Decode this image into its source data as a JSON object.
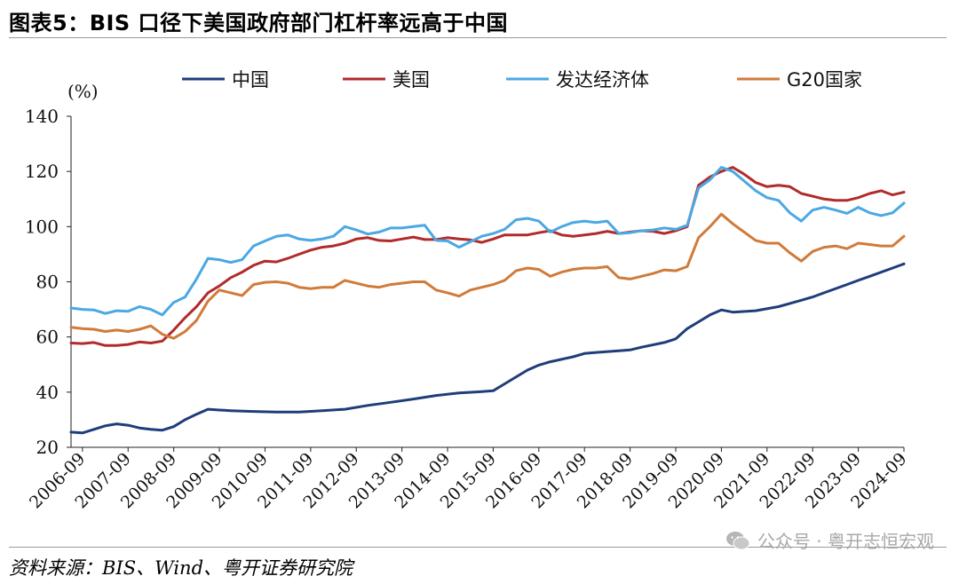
{
  "header": {
    "title": "图表5：BIS 口径下美国政府部门杠杆率远高于中国"
  },
  "footer": {
    "source": "资料来源：BIS、Wind、粤开证券研究院",
    "watermark": "公众号 · 粤开志恒宏观"
  },
  "chart_data": {
    "type": "line",
    "title": "",
    "ylabel": "(%)",
    "xlabel": "",
    "ylim": [
      20,
      140
    ],
    "yticks": [
      20,
      40,
      60,
      80,
      100,
      120,
      140
    ],
    "xlim": [
      2006.5,
      2024.75
    ],
    "x_ticks": [
      "2006-09",
      "2007-09",
      "2008-09",
      "2009-09",
      "2010-09",
      "2011-09",
      "2012-09",
      "2013-09",
      "2014-09",
      "2015-09",
      "2016-09",
      "2017-09",
      "2018-09",
      "2019-09",
      "2020-09",
      "2021-09",
      "2022-09",
      "2023-09",
      "2024-09"
    ],
    "grid": false,
    "legend": "top",
    "series": [
      {
        "name": "中国",
        "color": "#1f3d7a",
        "points": [
          [
            2006.5,
            25.5
          ],
          [
            2006.75,
            25.2
          ],
          [
            2007.0,
            26.5
          ],
          [
            2007.25,
            27.8
          ],
          [
            2007.5,
            28.5
          ],
          [
            2007.75,
            28.0
          ],
          [
            2008.0,
            27.0
          ],
          [
            2008.25,
            26.5
          ],
          [
            2008.5,
            26.2
          ],
          [
            2008.75,
            27.5
          ],
          [
            2009.0,
            30
          ],
          [
            2009.25,
            32
          ],
          [
            2009.5,
            33.8
          ],
          [
            2009.75,
            33.5
          ],
          [
            2010.0,
            33.3
          ],
          [
            2010.5,
            33
          ],
          [
            2011,
            32.8
          ],
          [
            2011.5,
            32.8
          ],
          [
            2012,
            33.3
          ],
          [
            2012.5,
            33.8
          ],
          [
            2013,
            35.2
          ],
          [
            2013.5,
            36.3
          ],
          [
            2014,
            37.5
          ],
          [
            2014.5,
            38.8
          ],
          [
            2015,
            39.7
          ],
          [
            2015.5,
            40.2
          ],
          [
            2015.75,
            40.5
          ],
          [
            2016,
            43
          ],
          [
            2016.5,
            48
          ],
          [
            2016.75,
            49.8
          ],
          [
            2017,
            51
          ],
          [
            2017.5,
            52.8
          ],
          [
            2017.75,
            54
          ],
          [
            2018,
            54.4
          ],
          [
            2018.5,
            55
          ],
          [
            2018.75,
            55.3
          ],
          [
            2019,
            56.3
          ],
          [
            2019.5,
            58
          ],
          [
            2019.75,
            59.3
          ],
          [
            2020,
            63
          ],
          [
            2020.25,
            65.5
          ],
          [
            2020.5,
            68
          ],
          [
            2020.75,
            69.8
          ],
          [
            2021,
            69
          ],
          [
            2021.5,
            69.5
          ],
          [
            2022,
            71
          ],
          [
            2022.5,
            73.3
          ],
          [
            2022.75,
            74.5
          ],
          [
            2023,
            76
          ],
          [
            2023.5,
            79
          ],
          [
            2023.75,
            80.5
          ],
          [
            2024,
            82
          ],
          [
            2024.5,
            85
          ],
          [
            2024.75,
            86.5
          ]
        ]
      },
      {
        "name": "美国",
        "color": "#b22b2b",
        "points": [
          [
            2006.5,
            57.8
          ],
          [
            2006.75,
            57.6
          ],
          [
            2007.0,
            58
          ],
          [
            2007.25,
            56.9
          ],
          [
            2007.5,
            56.9
          ],
          [
            2007.75,
            57.3
          ],
          [
            2008.0,
            58.2
          ],
          [
            2008.25,
            57.8
          ],
          [
            2008.5,
            58.5
          ],
          [
            2008.75,
            62.5
          ],
          [
            2009,
            67
          ],
          [
            2009.25,
            71
          ],
          [
            2009.5,
            76
          ],
          [
            2009.75,
            78.5
          ],
          [
            2010,
            81.5
          ],
          [
            2010.25,
            83.5
          ],
          [
            2010.5,
            86
          ],
          [
            2010.75,
            87.5
          ],
          [
            2011,
            87.2
          ],
          [
            2011.25,
            88.5
          ],
          [
            2011.5,
            90
          ],
          [
            2011.75,
            91.5
          ],
          [
            2012,
            92.5
          ],
          [
            2012.25,
            93
          ],
          [
            2012.5,
            94
          ],
          [
            2012.75,
            95.5
          ],
          [
            2013,
            96
          ],
          [
            2013.25,
            95
          ],
          [
            2013.5,
            94.8
          ],
          [
            2013.75,
            95.5
          ],
          [
            2014,
            96.2
          ],
          [
            2014.25,
            95.3
          ],
          [
            2014.5,
            95.3
          ],
          [
            2014.75,
            96
          ],
          [
            2015,
            95.5
          ],
          [
            2015.25,
            95.2
          ],
          [
            2015.5,
            94.3
          ],
          [
            2015.75,
            95.5
          ],
          [
            2016,
            97
          ],
          [
            2016.5,
            97
          ],
          [
            2016.75,
            97.8
          ],
          [
            2017,
            98.5
          ],
          [
            2017.25,
            97
          ],
          [
            2017.5,
            96.5
          ],
          [
            2017.75,
            97
          ],
          [
            2018,
            97.5
          ],
          [
            2018.25,
            98.3
          ],
          [
            2018.5,
            97.5
          ],
          [
            2018.75,
            98
          ],
          [
            2019,
            98.5
          ],
          [
            2019.25,
            98.3
          ],
          [
            2019.5,
            97.5
          ],
          [
            2019.75,
            98.5
          ],
          [
            2020,
            100
          ],
          [
            2020.25,
            115
          ],
          [
            2020.5,
            118
          ],
          [
            2020.75,
            120
          ],
          [
            2021,
            121.5
          ],
          [
            2021.25,
            119
          ],
          [
            2021.5,
            116
          ],
          [
            2021.75,
            114.5
          ],
          [
            2022,
            115
          ],
          [
            2022.25,
            114.5
          ],
          [
            2022.5,
            112
          ],
          [
            2022.75,
            111
          ],
          [
            2023,
            110
          ],
          [
            2023.25,
            109.5
          ],
          [
            2023.5,
            109.5
          ],
          [
            2023.75,
            110.5
          ],
          [
            2024,
            112
          ],
          [
            2024.25,
            113
          ],
          [
            2024.5,
            111.5
          ],
          [
            2024.75,
            112.5
          ]
        ]
      },
      {
        "name": "发达经济体",
        "color": "#4aa8e3",
        "points": [
          [
            2006.5,
            70.5
          ],
          [
            2006.75,
            70
          ],
          [
            2007.0,
            69.8
          ],
          [
            2007.25,
            68.5
          ],
          [
            2007.5,
            69.5
          ],
          [
            2007.75,
            69.3
          ],
          [
            2008.0,
            71
          ],
          [
            2008.25,
            70
          ],
          [
            2008.5,
            68
          ],
          [
            2008.75,
            72.5
          ],
          [
            2009,
            74.5
          ],
          [
            2009.25,
            81
          ],
          [
            2009.5,
            88.5
          ],
          [
            2009.75,
            88
          ],
          [
            2010,
            87
          ],
          [
            2010.25,
            88
          ],
          [
            2010.5,
            93
          ],
          [
            2010.75,
            94.8
          ],
          [
            2011,
            96.5
          ],
          [
            2011.25,
            97
          ],
          [
            2011.5,
            95.5
          ],
          [
            2011.75,
            95
          ],
          [
            2012,
            95.5
          ],
          [
            2012.25,
            96.5
          ],
          [
            2012.5,
            100
          ],
          [
            2012.75,
            98.8
          ],
          [
            2013,
            97.3
          ],
          [
            2013.25,
            98
          ],
          [
            2013.5,
            99.5
          ],
          [
            2013.75,
            99.5
          ],
          [
            2014,
            100
          ],
          [
            2014.25,
            100.5
          ],
          [
            2014.5,
            95
          ],
          [
            2014.75,
            94.8
          ],
          [
            2015,
            92.5
          ],
          [
            2015.25,
            94.5
          ],
          [
            2015.5,
            96.5
          ],
          [
            2015.75,
            97.5
          ],
          [
            2016,
            99
          ],
          [
            2016.25,
            102.5
          ],
          [
            2016.5,
            103
          ],
          [
            2016.75,
            102
          ],
          [
            2017,
            98
          ],
          [
            2017.25,
            100
          ],
          [
            2017.5,
            101.5
          ],
          [
            2017.75,
            102
          ],
          [
            2018,
            101.5
          ],
          [
            2018.25,
            102
          ],
          [
            2018.5,
            97.5
          ],
          [
            2018.75,
            97.8
          ],
          [
            2019,
            98.5
          ],
          [
            2019.25,
            98.8
          ],
          [
            2019.5,
            99.5
          ],
          [
            2019.75,
            99
          ],
          [
            2020,
            100.5
          ],
          [
            2020.25,
            114
          ],
          [
            2020.5,
            117
          ],
          [
            2020.75,
            121.5
          ],
          [
            2021,
            120
          ],
          [
            2021.25,
            116.5
          ],
          [
            2021.5,
            113
          ],
          [
            2021.75,
            110.5
          ],
          [
            2022,
            109.5
          ],
          [
            2022.25,
            105
          ],
          [
            2022.5,
            102
          ],
          [
            2022.75,
            106
          ],
          [
            2023,
            107
          ],
          [
            2023.25,
            106
          ],
          [
            2023.5,
            104.8
          ],
          [
            2023.75,
            107
          ],
          [
            2024,
            105
          ],
          [
            2024.25,
            104
          ],
          [
            2024.5,
            105
          ],
          [
            2024.75,
            108.5
          ]
        ]
      },
      {
        "name": "G20国家",
        "color": "#d07b3a",
        "points": [
          [
            2006.5,
            63.5
          ],
          [
            2006.75,
            63
          ],
          [
            2007.0,
            62.8
          ],
          [
            2007.25,
            62
          ],
          [
            2007.5,
            62.5
          ],
          [
            2007.75,
            62
          ],
          [
            2008.0,
            62.8
          ],
          [
            2008.25,
            64
          ],
          [
            2008.5,
            61
          ],
          [
            2008.75,
            59.5
          ],
          [
            2009,
            62
          ],
          [
            2009.25,
            66
          ],
          [
            2009.5,
            73
          ],
          [
            2009.75,
            77
          ],
          [
            2010,
            76
          ],
          [
            2010.25,
            75
          ],
          [
            2010.5,
            79
          ],
          [
            2010.75,
            79.8
          ],
          [
            2011,
            80
          ],
          [
            2011.25,
            79.5
          ],
          [
            2011.5,
            78
          ],
          [
            2011.75,
            77.5
          ],
          [
            2012,
            78
          ],
          [
            2012.25,
            78
          ],
          [
            2012.5,
            80.5
          ],
          [
            2012.75,
            79.5
          ],
          [
            2013,
            78.5
          ],
          [
            2013.25,
            78
          ],
          [
            2013.5,
            79
          ],
          [
            2013.75,
            79.5
          ],
          [
            2014,
            80
          ],
          [
            2014.25,
            80
          ],
          [
            2014.5,
            77
          ],
          [
            2014.75,
            76
          ],
          [
            2015,
            74.8
          ],
          [
            2015.25,
            77
          ],
          [
            2015.5,
            78
          ],
          [
            2015.75,
            79
          ],
          [
            2016,
            80.5
          ],
          [
            2016.25,
            84
          ],
          [
            2016.5,
            85
          ],
          [
            2016.75,
            84.5
          ],
          [
            2017,
            82
          ],
          [
            2017.25,
            83.5
          ],
          [
            2017.5,
            84.5
          ],
          [
            2017.75,
            85
          ],
          [
            2018,
            85
          ],
          [
            2018.25,
            85.5
          ],
          [
            2018.5,
            81.5
          ],
          [
            2018.75,
            81
          ],
          [
            2019,
            82
          ],
          [
            2019.25,
            83
          ],
          [
            2019.5,
            84.3
          ],
          [
            2019.75,
            84
          ],
          [
            2020,
            85.5
          ],
          [
            2020.25,
            96
          ],
          [
            2020.5,
            100
          ],
          [
            2020.75,
            104.5
          ],
          [
            2021,
            101
          ],
          [
            2021.25,
            98
          ],
          [
            2021.5,
            95
          ],
          [
            2021.75,
            94
          ],
          [
            2022,
            94
          ],
          [
            2022.25,
            90.5
          ],
          [
            2022.5,
            87.5
          ],
          [
            2022.75,
            91
          ],
          [
            2023,
            92.5
          ],
          [
            2023.25,
            93
          ],
          [
            2023.5,
            92
          ],
          [
            2023.75,
            94
          ],
          [
            2024,
            93.5
          ],
          [
            2024.25,
            93
          ],
          [
            2024.5,
            93
          ],
          [
            2024.75,
            96.5
          ]
        ]
      }
    ]
  }
}
